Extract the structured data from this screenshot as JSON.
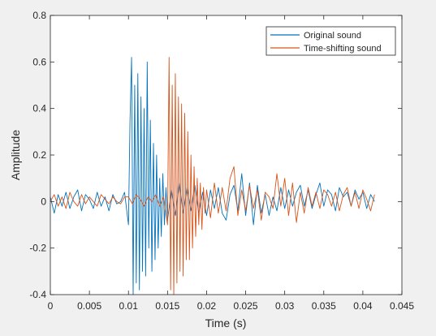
{
  "chart_data": {
    "type": "line",
    "xlabel": "Time (s)",
    "ylabel": "Amplitude",
    "xlim": [
      0,
      0.045
    ],
    "ylim": [
      -0.4,
      0.8
    ],
    "xticks": [
      "0",
      "0.005",
      "0.01",
      "0.015",
      "0.02",
      "0.025",
      "0.03",
      "0.035",
      "0.04",
      "0.045"
    ],
    "yticks": [
      "-0.4",
      "-0.2",
      "0",
      "0.2",
      "0.4",
      "0.6",
      "0.8"
    ],
    "grid": false,
    "legend_position": "top-right",
    "series": [
      {
        "name": "Original sound",
        "color": "#0072bd",
        "x": [
          0.0,
          0.0005,
          0.001,
          0.0015,
          0.002,
          0.0025,
          0.003,
          0.0035,
          0.004,
          0.0045,
          0.005,
          0.0055,
          0.006,
          0.0065,
          0.007,
          0.0075,
          0.008,
          0.0085,
          0.009,
          0.0095,
          0.01,
          0.0102,
          0.0104,
          0.0106,
          0.0108,
          0.011,
          0.0112,
          0.0114,
          0.0116,
          0.0118,
          0.012,
          0.0122,
          0.0124,
          0.0126,
          0.0128,
          0.013,
          0.0132,
          0.0134,
          0.0136,
          0.0138,
          0.014,
          0.0142,
          0.0144,
          0.0146,
          0.0148,
          0.015,
          0.0155,
          0.016,
          0.0165,
          0.017,
          0.0175,
          0.018,
          0.0185,
          0.019,
          0.0195,
          0.02,
          0.0205,
          0.021,
          0.0215,
          0.022,
          0.0225,
          0.023,
          0.0235,
          0.024,
          0.0245,
          0.025,
          0.0255,
          0.026,
          0.0265,
          0.027,
          0.0275,
          0.028,
          0.0285,
          0.029,
          0.0295,
          0.03,
          0.0305,
          0.031,
          0.0315,
          0.032,
          0.0325,
          0.033,
          0.0335,
          0.034,
          0.0345,
          0.035,
          0.0355,
          0.036,
          0.0365,
          0.037,
          0.0375,
          0.038,
          0.0385,
          0.039,
          0.0395,
          0.04,
          0.0405,
          0.041,
          0.0415
        ],
        "y": [
          0.02,
          -0.05,
          0.03,
          -0.02,
          0.04,
          -0.03,
          0.02,
          0.05,
          -0.04,
          0.03,
          0.01,
          -0.03,
          0.04,
          -0.02,
          0.02,
          -0.04,
          0.03,
          -0.01,
          0.0,
          0.04,
          -0.1,
          0.35,
          0.62,
          -0.4,
          0.5,
          -0.35,
          0.55,
          -0.38,
          0.45,
          -0.3,
          0.4,
          -0.32,
          0.6,
          -0.2,
          0.35,
          -0.3,
          0.25,
          -0.25,
          0.2,
          -0.2,
          0.1,
          -0.15,
          0.12,
          -0.1,
          0.06,
          -0.08,
          0.05,
          -0.06,
          0.08,
          -0.05,
          0.06,
          -0.04,
          0.07,
          -0.05,
          0.04,
          -0.06,
          0.05,
          -0.03,
          0.06,
          -0.05,
          -0.08,
          0.03,
          0.07,
          -0.04,
          0.12,
          -0.06,
          0.08,
          -0.1,
          0.07,
          -0.05,
          0.03,
          -0.06,
          0.02,
          -0.04,
          0.06,
          -0.03,
          0.05,
          -0.02,
          0.04,
          0.07,
          -0.02,
          0.05,
          -0.03,
          0.03,
          0.08,
          -0.02,
          0.05,
          0.03,
          -0.04,
          0.06,
          0.02,
          0.04,
          -0.02,
          0.05,
          0.01,
          0.04,
          -0.03,
          0.03,
          0.0
        ]
      },
      {
        "name": "Time-shifting sound",
        "color": "#d95319",
        "x": [
          0.0,
          0.0005,
          0.001,
          0.0015,
          0.002,
          0.0025,
          0.003,
          0.0035,
          0.004,
          0.0045,
          0.005,
          0.0055,
          0.006,
          0.0065,
          0.007,
          0.0075,
          0.008,
          0.0085,
          0.009,
          0.0095,
          0.01,
          0.0105,
          0.011,
          0.0115,
          0.012,
          0.0125,
          0.013,
          0.0135,
          0.014,
          0.0145,
          0.015,
          0.0152,
          0.0154,
          0.0156,
          0.0158,
          0.016,
          0.0162,
          0.0164,
          0.0166,
          0.0168,
          0.017,
          0.0172,
          0.0174,
          0.0176,
          0.0178,
          0.018,
          0.0182,
          0.0184,
          0.0186,
          0.0188,
          0.019,
          0.0192,
          0.0194,
          0.0196,
          0.0198,
          0.02,
          0.0205,
          0.021,
          0.0215,
          0.022,
          0.0225,
          0.023,
          0.0235,
          0.024,
          0.0245,
          0.025,
          0.0255,
          0.026,
          0.0265,
          0.027,
          0.0275,
          0.028,
          0.0285,
          0.029,
          0.0295,
          0.03,
          0.0305,
          0.031,
          0.0315,
          0.032,
          0.0325,
          0.033,
          0.0335,
          0.034,
          0.0345,
          0.035,
          0.0355,
          0.036,
          0.0365,
          0.037,
          0.0375,
          0.038,
          0.0385,
          0.039,
          0.0395,
          0.04,
          0.0405,
          0.041,
          0.0415
        ],
        "y": [
          0.0,
          0.03,
          -0.02,
          0.02,
          -0.03,
          0.04,
          0.0,
          -0.02,
          0.03,
          -0.01,
          0.02,
          0.0,
          -0.02,
          0.03,
          0.01,
          -0.01,
          0.02,
          0.0,
          -0.01,
          0.02,
          0.02,
          -0.01,
          0.03,
          0.01,
          -0.02,
          0.02,
          0.0,
          0.03,
          -0.02,
          0.02,
          -0.1,
          0.62,
          -0.38,
          0.5,
          -0.4,
          0.55,
          -0.35,
          0.45,
          -0.3,
          0.42,
          -0.32,
          0.38,
          -0.25,
          0.3,
          -0.25,
          0.2,
          -0.2,
          0.15,
          -0.15,
          0.1,
          -0.1,
          0.08,
          -0.12,
          0.06,
          -0.05,
          0.05,
          -0.07,
          0.08,
          -0.05,
          0.06,
          -0.04,
          0.1,
          0.15,
          -0.06,
          0.05,
          -0.04,
          0.07,
          -0.03,
          0.05,
          -0.08,
          0.04,
          0.02,
          -0.03,
          0.12,
          -0.02,
          0.1,
          -0.06,
          0.08,
          -0.09,
          0.04,
          -0.05,
          0.06,
          -0.02,
          0.04,
          -0.03,
          0.05,
          0.03,
          -0.02,
          0.04,
          -0.04,
          0.03,
          0.06,
          -0.02,
          0.04,
          -0.03,
          0.05,
          0.01,
          -0.04,
          0.03
        ]
      }
    ]
  }
}
